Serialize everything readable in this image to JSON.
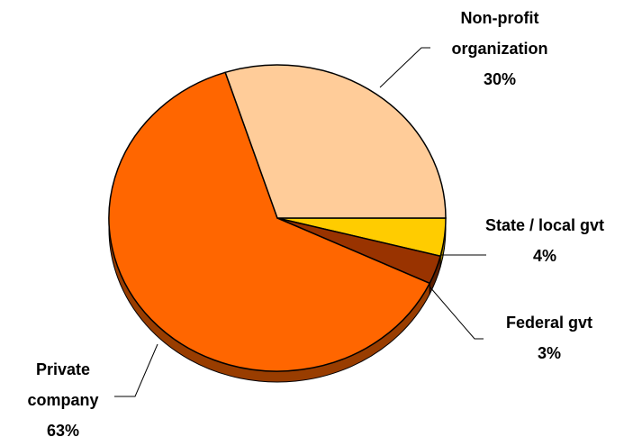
{
  "chart_data": {
    "type": "pie",
    "categories": [
      "State / local gvt",
      "Federal gvt",
      "Private company",
      "Non-profit organization"
    ],
    "values": [
      4,
      3,
      63,
      30
    ],
    "value_labels": [
      "4%",
      "3%",
      "63%",
      "30%"
    ],
    "colors": [
      "#FFCC00",
      "#993300",
      "#FF6600",
      "#FFCC99"
    ]
  }
}
